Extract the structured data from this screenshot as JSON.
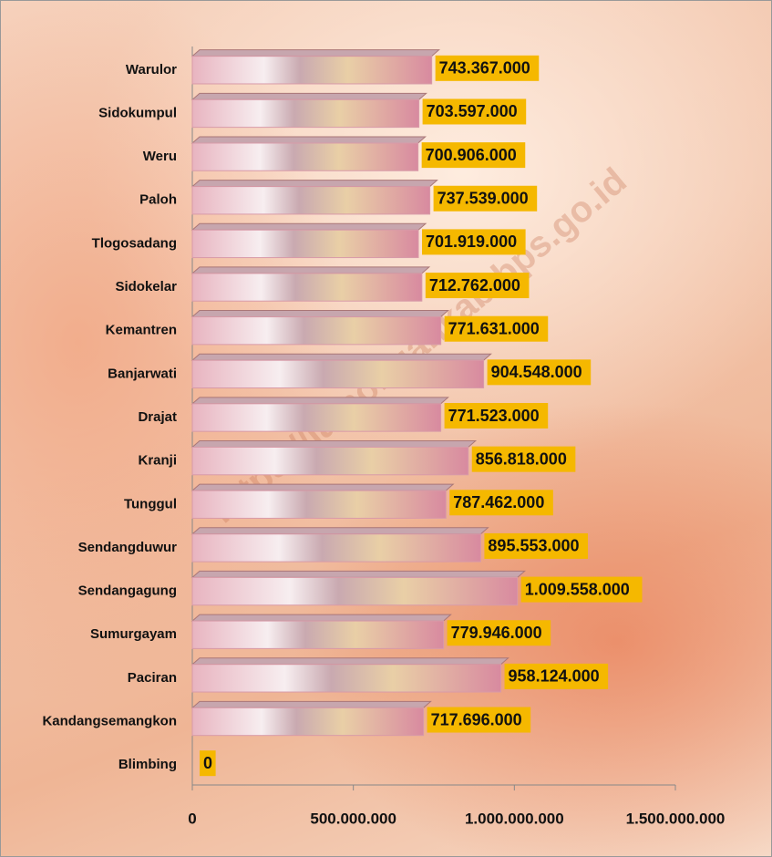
{
  "chart_data": {
    "type": "bar",
    "orientation": "horizontal",
    "categories": [
      "Warulor",
      "Sidokumpul",
      "Weru",
      "Paloh",
      "Tlogosadang",
      "Sidokelar",
      "Kemantren",
      "Banjarwati",
      "Drajat",
      "Kranji",
      "Tunggul",
      "Sendangduwur",
      "Sendangagung",
      "Sumurgayam",
      "Paciran",
      "Kandangsemangkon",
      "Blimbing"
    ],
    "values": [
      743367000,
      703597000,
      700906000,
      737539000,
      701919000,
      712762000,
      771631000,
      904548000,
      771523000,
      856818000,
      787462000,
      895553000,
      1009558000,
      779946000,
      958124000,
      717696000,
      0
    ],
    "value_labels": [
      "743.367.000",
      "703.597.000",
      "700.906.000",
      "737.539.000",
      "701.919.000",
      "712.762.000",
      "771.631.000",
      "904.548.000",
      "771.523.000",
      "856.818.000",
      "787.462.000",
      "895.553.000",
      "1.009.558.000",
      "779.946.000",
      "958.124.000",
      "717.696.000",
      "0"
    ],
    "color": "#d89aa8",
    "label_color": "#f5b800",
    "xlim": [
      0,
      1500000000
    ],
    "xticks": [
      0,
      {
        "value": 500000000,
        "label": "500.000.000"
      },
      {
        "value": 1000000000,
        "label": "1.000.000.000"
      },
      {
        "value": 1500000000,
        "label": "1.500.000.000"
      }
    ],
    "watermark": "https://lamongankab.bps.go.id"
  }
}
